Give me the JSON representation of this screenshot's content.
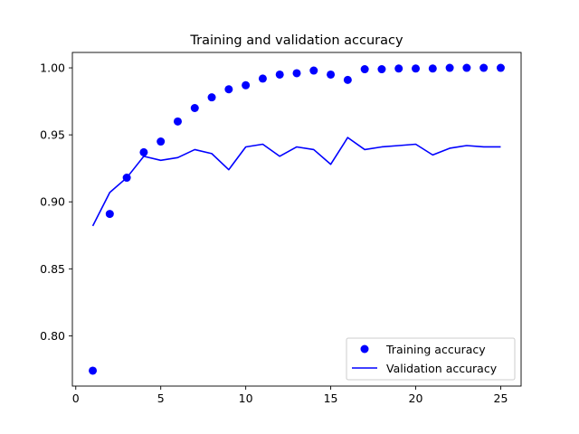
{
  "chart_data": {
    "type": "line",
    "title": "Training and validation accuracy",
    "xlabel": "",
    "ylabel": "",
    "xlim": [
      -0.2,
      26.2
    ],
    "ylim": [
      0.7625,
      1.0115
    ],
    "x_ticks": [
      0,
      5,
      10,
      15,
      20,
      25
    ],
    "y_ticks": [
      0.8,
      0.85,
      0.9,
      0.95,
      1.0
    ],
    "y_tick_labels": [
      "0.80",
      "0.85",
      "0.90",
      "0.95",
      "1.00"
    ],
    "grid": false,
    "legend_position": "lower-right",
    "x": [
      1,
      2,
      3,
      4,
      5,
      6,
      7,
      8,
      9,
      10,
      11,
      12,
      13,
      14,
      15,
      16,
      17,
      18,
      19,
      20,
      21,
      22,
      23,
      24,
      25
    ],
    "series": [
      {
        "name": "Training accuracy",
        "style": "markers",
        "color": "#0000ff",
        "values": [
          0.774,
          0.891,
          0.918,
          0.937,
          0.945,
          0.96,
          0.97,
          0.978,
          0.984,
          0.987,
          0.992,
          0.995,
          0.996,
          0.998,
          0.995,
          0.991,
          0.999,
          0.999,
          0.9995,
          0.9995,
          0.9995,
          1.0,
          1.0,
          1.0,
          1.0
        ]
      },
      {
        "name": "Validation accuracy",
        "style": "line",
        "color": "#0000ff",
        "values": [
          0.882,
          0.907,
          0.918,
          0.934,
          0.931,
          0.933,
          0.939,
          0.936,
          0.924,
          0.941,
          0.943,
          0.934,
          0.941,
          0.939,
          0.928,
          0.948,
          0.939,
          0.941,
          0.942,
          0.943,
          0.935,
          0.94,
          0.942,
          0.941,
          0.941
        ]
      }
    ]
  }
}
